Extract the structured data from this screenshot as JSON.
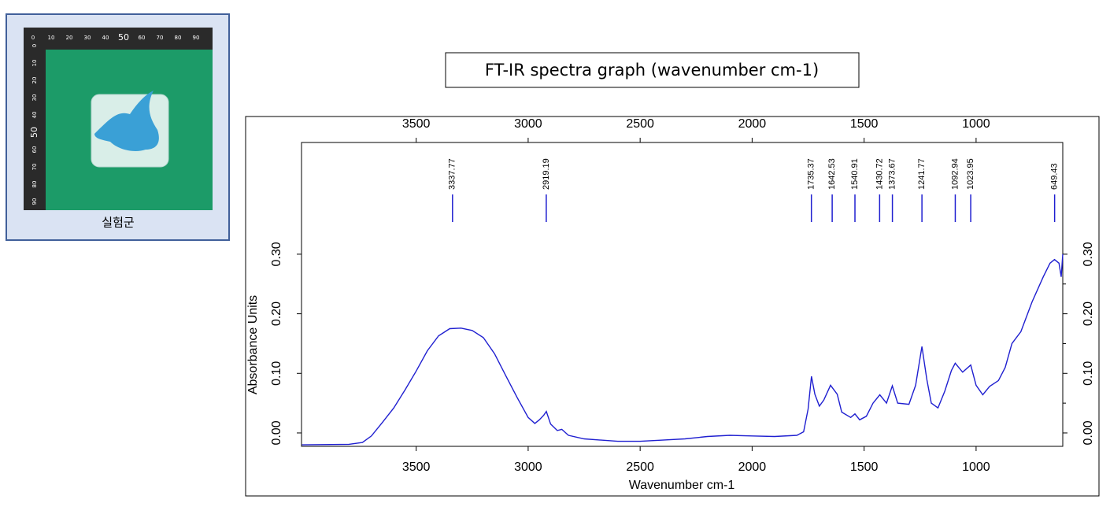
{
  "photo": {
    "caption": "실험군",
    "ruler_top": [
      "0",
      "10",
      "20",
      "30",
      "40",
      "50",
      "60",
      "70",
      "80",
      "90"
    ],
    "ruler_left": [
      "0",
      "10",
      "20",
      "30",
      "40",
      "50",
      "60",
      "70",
      "80",
      "90"
    ]
  },
  "chart_data": {
    "type": "line",
    "title": "FT-IR spectra graph (wavenumber cm-1)",
    "x_label": "Wavenumber cm-1",
    "y_label": "Absorbance Units",
    "color": "#1f1fd0",
    "x": [
      4010,
      3800,
      3740,
      3700,
      3650,
      3600,
      3550,
      3500,
      3450,
      3400,
      3350,
      3300,
      3250,
      3200,
      3150,
      3100,
      3050,
      3000,
      2970,
      2950,
      2930,
      2919,
      2900,
      2870,
      2850,
      2820,
      2750,
      2600,
      2500,
      2400,
      2300,
      2200,
      2100,
      2000,
      1900,
      1800,
      1770,
      1750,
      1735,
      1720,
      1700,
      1680,
      1650,
      1620,
      1600,
      1560,
      1541,
      1520,
      1490,
      1460,
      1430,
      1400,
      1374,
      1350,
      1300,
      1270,
      1242,
      1220,
      1200,
      1170,
      1140,
      1110,
      1093,
      1060,
      1024,
      1000,
      970,
      940,
      900,
      870,
      840,
      800,
      750,
      700,
      670,
      650,
      630,
      620,
      613
    ],
    "values": [
      -0.02,
      -0.019,
      -0.016,
      -0.005,
      0.018,
      0.042,
      0.072,
      0.104,
      0.138,
      0.163,
      0.175,
      0.176,
      0.172,
      0.16,
      0.133,
      0.096,
      0.06,
      0.026,
      0.016,
      0.022,
      0.03,
      0.036,
      0.015,
      0.004,
      0.006,
      -0.004,
      -0.01,
      -0.014,
      -0.014,
      -0.012,
      -0.01,
      -0.006,
      -0.004,
      -0.005,
      -0.006,
      -0.004,
      0.002,
      0.04,
      0.095,
      0.065,
      0.045,
      0.055,
      0.08,
      0.065,
      0.035,
      0.026,
      0.032,
      0.022,
      0.028,
      0.05,
      0.064,
      0.05,
      0.079,
      0.05,
      0.048,
      0.08,
      0.145,
      0.09,
      0.05,
      0.042,
      0.07,
      0.105,
      0.117,
      0.102,
      0.114,
      0.08,
      0.064,
      0.078,
      0.088,
      0.11,
      0.15,
      0.17,
      0.22,
      0.262,
      0.285,
      0.291,
      0.285,
      0.262,
      0.3
    ],
    "peaks": [
      3337.77,
      2919.19,
      1735.37,
      1642.53,
      1540.91,
      1430.72,
      1373.67,
      1241.77,
      1092.94,
      1023.95,
      649.43
    ],
    "xlim": [
      4012,
      613
    ],
    "xticks": [
      3500,
      3000,
      2500,
      2000,
      1500,
      1000
    ],
    "ylim": [
      -0.0225,
      0.4875
    ],
    "yticks": [
      {
        "value": 0,
        "label": "0.00"
      },
      {
        "value": 0.1,
        "label": "0.10"
      },
      {
        "value": 0.2,
        "label": "0.20"
      },
      {
        "value": 0.3,
        "label": "0.30"
      }
    ],
    "y_minor_ticks": [
      0.05,
      0.15,
      0.25
    ]
  }
}
